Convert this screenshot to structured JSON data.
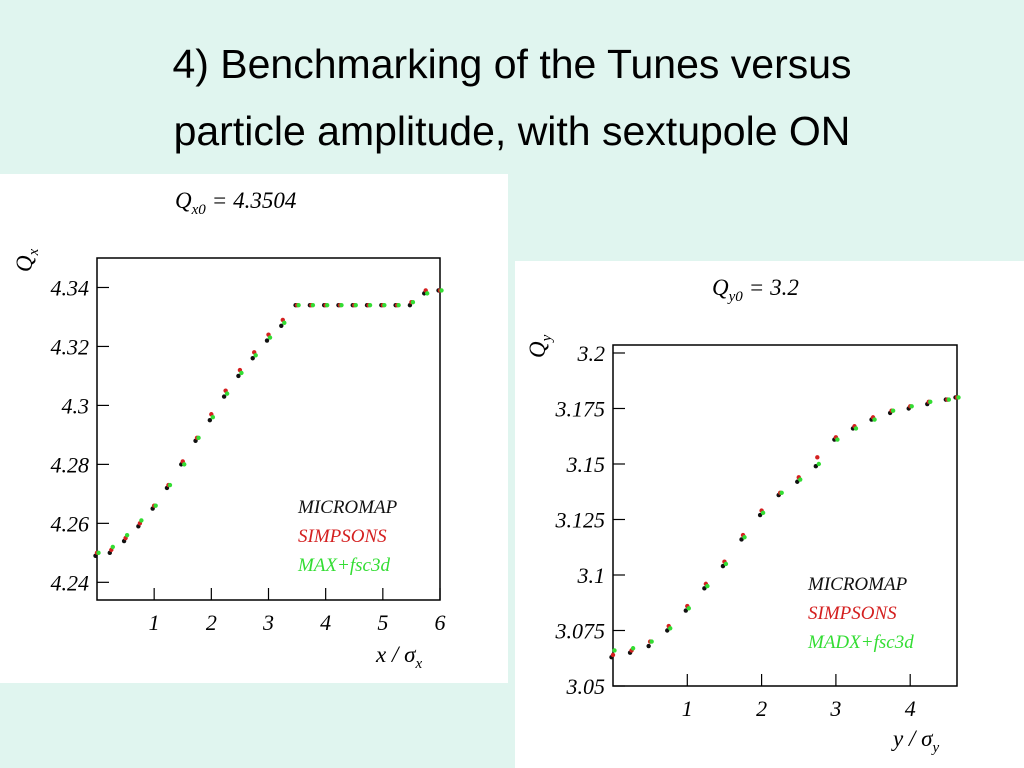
{
  "slide_title": [
    "4) Benchmarking of the Tunes versus",
    "particle amplitude, with sextupole ON"
  ],
  "chart_data": [
    {
      "type": "scatter",
      "annotation": {
        "symbol": "Q",
        "subscript": "x0",
        "text": "= 4.3504"
      },
      "ylabel": {
        "symbol": "Q",
        "subscript": "x"
      },
      "xlabel": {
        "symbol": "x / σ",
        "subscript": "x"
      },
      "xlim": [
        0,
        6
      ],
      "xticks": [
        1,
        2,
        3,
        4,
        5,
        6
      ],
      "ylim": [
        4.234,
        4.35
      ],
      "yticks": [
        4.24,
        4.26,
        4.28,
        4.3,
        4.32,
        4.34
      ],
      "legend": "lower right",
      "x": [
        0,
        0.25,
        0.5,
        0.75,
        1,
        1.25,
        1.5,
        1.75,
        2,
        2.25,
        2.5,
        2.75,
        3,
        3.25,
        3.5,
        3.75,
        4,
        4.25,
        4.5,
        4.75,
        5,
        5.25,
        5.5,
        5.75,
        6
      ],
      "series": [
        {
          "name": "MICROMAP",
          "color": "#111111",
          "values": [
            4.249,
            4.25,
            4.254,
            4.259,
            4.265,
            4.272,
            4.28,
            4.288,
            4.295,
            4.303,
            4.31,
            4.316,
            4.322,
            4.327,
            4.334,
            4.334,
            4.334,
            4.334,
            4.334,
            4.334,
            4.334,
            4.334,
            4.334,
            4.338,
            4.339
          ]
        },
        {
          "name": "SIMPSONS",
          "color": "#d42020",
          "values": [
            4.25,
            4.251,
            4.255,
            4.26,
            4.266,
            4.273,
            4.281,
            4.289,
            4.297,
            4.305,
            4.312,
            4.318,
            4.324,
            4.329,
            4.334,
            4.334,
            4.334,
            4.334,
            4.334,
            4.334,
            4.334,
            4.334,
            4.335,
            4.339,
            4.339
          ]
        },
        {
          "name": "MAX+fsc3d",
          "color": "#33dd33",
          "values": [
            4.25,
            4.252,
            4.256,
            4.261,
            4.266,
            4.273,
            4.28,
            4.289,
            4.296,
            4.304,
            4.311,
            4.317,
            4.323,
            4.328,
            4.334,
            4.334,
            4.334,
            4.334,
            4.334,
            4.334,
            4.334,
            4.334,
            4.335,
            4.338,
            4.339
          ]
        }
      ]
    },
    {
      "type": "scatter",
      "annotation": {
        "symbol": "Q",
        "subscript": "y0",
        "text": "= 3.2"
      },
      "ylabel": {
        "symbol": "Q",
        "subscript": "y"
      },
      "xlabel": {
        "symbol": "y / σ",
        "subscript": "y"
      },
      "xlim": [
        0,
        4.63
      ],
      "xticks": [
        1,
        2,
        3,
        4
      ],
      "ylim": [
        3.05,
        3.2036
      ],
      "yticks": [
        3.05,
        3.075,
        3.1,
        3.125,
        3.15,
        3.175,
        3.2
      ],
      "legend": "lower right",
      "x": [
        0,
        0.25,
        0.5,
        0.75,
        1,
        1.25,
        1.5,
        1.75,
        2,
        2.25,
        2.5,
        2.75,
        3,
        3.25,
        3.5,
        3.75,
        4,
        4.25,
        4.5,
        4.63
      ],
      "series": [
        {
          "name": "MICROMAP",
          "color": "#111111",
          "values": [
            3.063,
            3.065,
            3.068,
            3.075,
            3.084,
            3.094,
            3.104,
            3.116,
            3.127,
            3.136,
            3.142,
            3.149,
            3.161,
            3.166,
            3.17,
            3.173,
            3.175,
            3.177,
            3.179,
            3.18
          ]
        },
        {
          "name": "SIMPSONS",
          "color": "#d42020",
          "values": [
            3.064,
            3.066,
            3.07,
            3.077,
            3.086,
            3.096,
            3.106,
            3.118,
            3.129,
            3.137,
            3.144,
            3.153,
            3.162,
            3.167,
            3.171,
            3.174,
            3.176,
            3.178,
            3.179,
            3.18
          ]
        },
        {
          "name": "MADX+fsc3d",
          "color": "#33dd33",
          "values": [
            3.066,
            3.067,
            3.07,
            3.076,
            3.085,
            3.095,
            3.105,
            3.117,
            3.128,
            3.137,
            3.143,
            3.15,
            3.161,
            3.166,
            3.17,
            3.174,
            3.176,
            3.178,
            3.179,
            3.18
          ]
        }
      ]
    }
  ]
}
